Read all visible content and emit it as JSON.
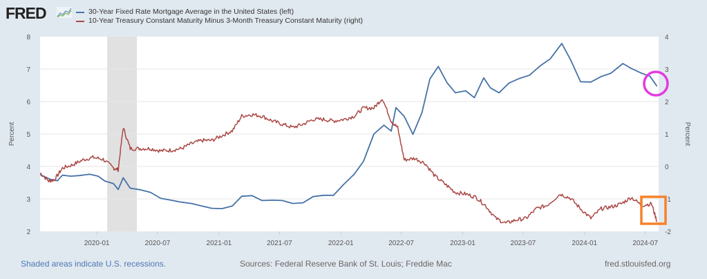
{
  "header": {
    "logo_text": "FRED",
    "logo_icon": "chart-line-icon"
  },
  "footer": {
    "recession_note": "Shaded areas indicate U.S. recessions.",
    "sources": "Sources: Federal Reserve Bank of St. Louis; Freddie Mac",
    "site": "fred.stlouisfed.org"
  },
  "colors": {
    "mortgage": "#4572a7",
    "spread": "#aa4643",
    "recession": "#e1e1e1",
    "circle_annotation": "#e23be0",
    "box_annotation": "#f5822a"
  },
  "chart_data": {
    "type": "line",
    "title": "",
    "xlabel": "",
    "ylabel": "Percent",
    "y2label": "Percent",
    "ylim": [
      2,
      8
    ],
    "y2lim": [
      -2,
      4
    ],
    "grid": true,
    "legend_position": "top-left",
    "x_range": [
      "2019-07-15",
      "2024-08-10"
    ],
    "yticks": [
      "2",
      "3",
      "4",
      "5",
      "6",
      "7",
      "8"
    ],
    "y2ticks": [
      "-2",
      "-1",
      "0",
      "1",
      "2",
      "3",
      "4"
    ],
    "xticks": [
      "2020-01",
      "2020-07",
      "2021-01",
      "2021-07",
      "2022-01",
      "2022-07",
      "2023-01",
      "2023-07",
      "2024-01",
      "2024-07"
    ],
    "recessions": [
      [
        "2020-02-01",
        "2020-04-30"
      ]
    ],
    "annotations": [
      {
        "shape": "circle",
        "around": "30-Year Fixed Rate Mortgage Average in the United States (left)",
        "date": "2024-08-01"
      },
      {
        "shape": "rectangle",
        "around": "10-Year Treasury Constant Maturity Minus 3-Month Treasury Constant Maturity (right)",
        "date_range": [
          "2024-06-01",
          "2024-08-10"
        ]
      }
    ],
    "series": [
      {
        "name": "30-Year Fixed Rate Mortgage Average in the United States (left)",
        "axis": "left",
        "x": [
          "2019-07-15",
          "2019-08-15",
          "2019-09-05",
          "2019-09-20",
          "2019-10-15",
          "2019-11-10",
          "2019-12-10",
          "2020-01-05",
          "2020-01-25",
          "2020-02-20",
          "2020-03-05",
          "2020-03-20",
          "2020-04-10",
          "2020-05-10",
          "2020-06-10",
          "2020-07-10",
          "2020-08-10",
          "2020-09-10",
          "2020-10-10",
          "2020-11-10",
          "2020-12-10",
          "2021-01-10",
          "2021-02-10",
          "2021-03-10",
          "2021-04-10",
          "2021-05-10",
          "2021-06-10",
          "2021-07-10",
          "2021-08-10",
          "2021-09-10",
          "2021-10-10",
          "2021-11-10",
          "2021-12-10",
          "2022-01-10",
          "2022-02-10",
          "2022-03-10",
          "2022-04-10",
          "2022-05-10",
          "2022-06-01",
          "2022-06-15",
          "2022-07-10",
          "2022-08-05",
          "2022-09-01",
          "2022-09-25",
          "2022-10-20",
          "2022-11-15",
          "2022-12-10",
          "2023-01-10",
          "2023-02-05",
          "2023-03-05",
          "2023-03-25",
          "2023-04-20",
          "2023-05-20",
          "2023-06-20",
          "2023-07-20",
          "2023-08-20",
          "2023-09-20",
          "2023-10-25",
          "2023-11-20",
          "2023-12-20",
          "2024-01-20",
          "2024-02-20",
          "2024-03-20",
          "2024-04-25",
          "2024-05-20",
          "2024-06-20",
          "2024-07-15",
          "2024-08-05"
        ],
        "values": [
          3.75,
          3.6,
          3.56,
          3.73,
          3.7,
          3.72,
          3.76,
          3.7,
          3.55,
          3.47,
          3.29,
          3.65,
          3.33,
          3.28,
          3.2,
          3.02,
          2.96,
          2.9,
          2.86,
          2.78,
          2.71,
          2.7,
          2.78,
          3.08,
          3.1,
          2.95,
          2.96,
          2.95,
          2.86,
          2.88,
          3.07,
          3.11,
          3.11,
          3.45,
          3.76,
          4.16,
          5.0,
          5.27,
          5.09,
          5.81,
          5.54,
          4.99,
          5.66,
          6.7,
          7.08,
          6.58,
          6.27,
          6.33,
          6.12,
          6.73,
          6.42,
          6.27,
          6.57,
          6.71,
          6.81,
          7.09,
          7.31,
          7.79,
          7.29,
          6.61,
          6.6,
          6.77,
          6.87,
          7.17,
          7.02,
          6.87,
          6.78,
          6.47
        ]
      },
      {
        "name": "10-Year Treasury Constant Maturity Minus 3-Month Treasury Constant Maturity (right)",
        "axis": "right",
        "x": [
          "2019-07-15",
          "2019-08-10",
          "2019-08-28",
          "2019-09-20",
          "2019-10-20",
          "2019-11-20",
          "2019-12-20",
          "2020-01-20",
          "2020-02-20",
          "2020-03-05",
          "2020-03-20",
          "2020-04-10",
          "2020-05-10",
          "2020-06-10",
          "2020-07-10",
          "2020-08-10",
          "2020-09-10",
          "2020-10-10",
          "2020-11-10",
          "2020-12-10",
          "2021-01-10",
          "2021-02-10",
          "2021-03-10",
          "2021-04-10",
          "2021-05-10",
          "2021-06-10",
          "2021-07-10",
          "2021-08-10",
          "2021-09-10",
          "2021-10-10",
          "2021-11-10",
          "2021-12-10",
          "2022-01-10",
          "2022-02-10",
          "2022-03-10",
          "2022-04-10",
          "2022-05-05",
          "2022-06-01",
          "2022-06-20",
          "2022-07-10",
          "2022-08-10",
          "2022-09-10",
          "2022-10-10",
          "2022-11-10",
          "2022-12-10",
          "2023-01-10",
          "2023-02-10",
          "2023-03-10",
          "2023-04-10",
          "2023-05-10",
          "2023-06-10",
          "2023-07-10",
          "2023-08-10",
          "2023-09-10",
          "2023-10-20",
          "2023-11-20",
          "2023-12-20",
          "2024-01-20",
          "2024-02-20",
          "2024-03-20",
          "2024-04-20",
          "2024-05-20",
          "2024-06-20",
          "2024-07-20",
          "2024-08-05"
        ],
        "values": [
          -0.2,
          -0.45,
          -0.4,
          -0.05,
          0.05,
          0.2,
          0.28,
          0.22,
          -0.05,
          -0.1,
          1.2,
          0.55,
          0.55,
          0.55,
          0.48,
          0.5,
          0.55,
          0.7,
          0.8,
          0.8,
          0.95,
          1.1,
          1.55,
          1.6,
          1.55,
          1.4,
          1.3,
          1.2,
          1.3,
          1.45,
          1.45,
          1.4,
          1.45,
          1.55,
          1.8,
          1.8,
          2.1,
          1.4,
          1.2,
          0.2,
          0.25,
          0.1,
          -0.3,
          -0.55,
          -0.8,
          -0.85,
          -0.95,
          -1.2,
          -1.6,
          -1.75,
          -1.65,
          -1.6,
          -1.3,
          -1.2,
          -0.85,
          -0.98,
          -1.3,
          -1.6,
          -1.3,
          -1.25,
          -1.15,
          -0.95,
          -1.2,
          -1.15,
          -1.7
        ]
      }
    ]
  }
}
